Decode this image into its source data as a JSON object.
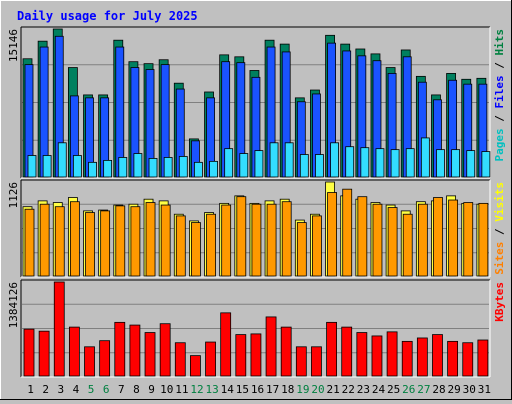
{
  "page": {
    "background": "#c0c0c0",
    "panel_bg": "#c0c0c0",
    "grid_color": "#808080"
  },
  "chart_data": [
    {
      "type": "bar",
      "title": "Daily usage for July 2025",
      "title_color": "#0000ff",
      "x_ticks": [
        "1",
        "2",
        "3",
        "4",
        "5",
        "6",
        "7",
        "8",
        "9",
        "10",
        "11",
        "12",
        "13",
        "14",
        "15",
        "16",
        "17",
        "18",
        "19",
        "20",
        "21",
        "22",
        "23",
        "24",
        "25",
        "26",
        "27",
        "28",
        "29",
        "30",
        "31"
      ],
      "weekend_days": [
        5,
        6,
        12,
        13,
        19,
        20,
        26,
        27
      ],
      "weekend_color": "#008040",
      "weekday_color": "#000000",
      "ylabel_parts": [
        {
          "text": "Pages",
          "color": "#00c0c0"
        },
        {
          "text": " / ",
          "color": "#000000"
        },
        {
          "text": "Files",
          "color": "#0000ff"
        },
        {
          "text": " / ",
          "color": "#000000"
        },
        {
          "text": "Hits",
          "color": "#008040"
        }
      ],
      "ymax_label": "15146",
      "ylim": [
        0,
        15146
      ],
      "series": [
        {
          "name": "Hits",
          "color": "#00805f",
          "values": [
            12100,
            13900,
            15146,
            11200,
            8400,
            8400,
            14000,
            11800,
            11600,
            12000,
            9600,
            3900,
            8700,
            12500,
            12300,
            10900,
            14000,
            13600,
            8100,
            8900,
            14500,
            13600,
            13100,
            12600,
            11200,
            13000,
            10300,
            8400,
            10600,
            10000,
            10100
          ]
        },
        {
          "name": "Files",
          "color": "#1a53ff",
          "values": [
            11500,
            13300,
            14400,
            8300,
            8100,
            8100,
            13300,
            11200,
            11000,
            11500,
            9000,
            3700,
            8100,
            11800,
            11700,
            10200,
            13300,
            12800,
            7700,
            8500,
            13700,
            12900,
            12400,
            11900,
            10600,
            12300,
            9700,
            7900,
            9900,
            9500,
            9500
          ]
        },
        {
          "name": "Pages",
          "color": "#33ddff",
          "values": [
            2200,
            2200,
            3500,
            2200,
            1500,
            1700,
            2000,
            2400,
            1900,
            2000,
            2100,
            1500,
            1600,
            2900,
            2400,
            2700,
            3500,
            3500,
            2300,
            2300,
            3500,
            3100,
            3000,
            2900,
            2800,
            2900,
            4000,
            2800,
            2800,
            2700,
            2600
          ]
        }
      ]
    },
    {
      "type": "bar",
      "ylabel_parts": [
        {
          "text": "Sites",
          "color": "#ff8000"
        },
        {
          "text": " / ",
          "color": "#000000"
        },
        {
          "text": "Visits",
          "color": "#ffff00"
        }
      ],
      "ymax_label": "1126",
      "ylim": [
        0,
        1126
      ],
      "series": [
        {
          "name": "Visits",
          "color": "#ffff44",
          "values": [
            830,
            900,
            880,
            940,
            780,
            790,
            850,
            860,
            920,
            900,
            740,
            660,
            760,
            870,
            960,
            870,
            900,
            920,
            670,
            740,
            1126,
            960,
            920,
            880,
            850,
            780,
            890,
            900,
            960,
            870,
            860
          ]
        },
        {
          "name": "Sites",
          "color": "#ff9900",
          "values": [
            800,
            860,
            830,
            890,
            760,
            780,
            840,
            830,
            880,
            850,
            720,
            640,
            740,
            850,
            950,
            860,
            860,
            890,
            640,
            720,
            1000,
            1040,
            950,
            860,
            820,
            740,
            860,
            940,
            910,
            880,
            870
          ]
        }
      ]
    },
    {
      "type": "bar",
      "ylabel_parts": [
        {
          "text": "KBytes",
          "color": "#ff0000"
        }
      ],
      "ymax_label": "1384126",
      "ylim": [
        0,
        1384126
      ],
      "series": [
        {
          "name": "KBytes",
          "color": "#ff0000",
          "values": [
            690000,
            660000,
            1384126,
            720000,
            430000,
            520000,
            790000,
            750000,
            640000,
            770000,
            490000,
            300000,
            500000,
            930000,
            610000,
            620000,
            870000,
            720000,
            430000,
            430000,
            790000,
            720000,
            640000,
            590000,
            650000,
            510000,
            560000,
            610000,
            510000,
            490000,
            530000
          ]
        }
      ]
    }
  ]
}
